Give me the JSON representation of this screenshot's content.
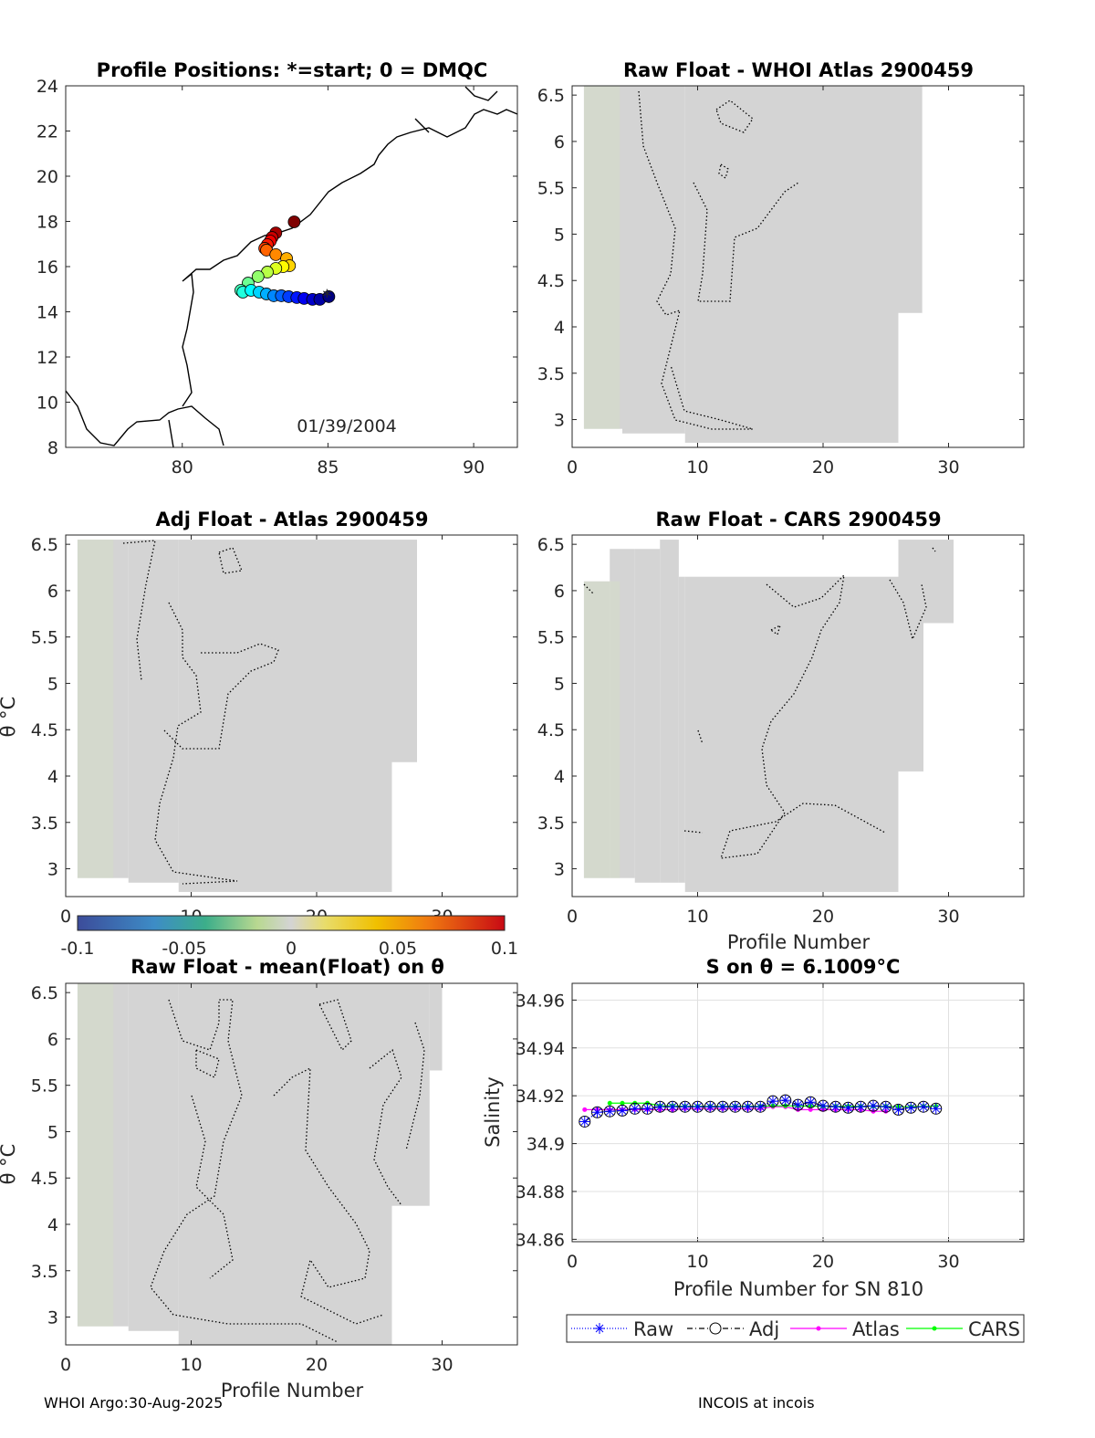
{
  "footer": {
    "left": "WHOI Argo:30-Aug-2025",
    "right": "INCOIS at incois"
  },
  "colors": {
    "gray": "#d4d4d4",
    "greenish": "#d3dcc8",
    "raw": "#0000ff",
    "adj": "#000000",
    "atlas": "#ff00ff",
    "cars": "#00ff00"
  },
  "chart_data": [
    {
      "id": "map",
      "type": "scatter",
      "title": "Profile Positions: *=start; 0 = DMQC",
      "annotation": "01/39/2004",
      "xlim": [
        76,
        91.5
      ],
      "ylim": [
        8,
        24
      ],
      "xticks": [
        80,
        85,
        90
      ],
      "yticks": [
        8,
        10,
        12,
        14,
        16,
        18,
        20,
        22,
        24
      ],
      "lon": [
        85.03,
        84.72,
        84.47,
        84.18,
        83.93,
        83.65,
        83.4,
        83.14,
        82.89,
        82.64,
        82.36,
        82.08,
        82.01,
        82.26,
        82.6,
        82.92,
        83.21,
        83.46,
        83.68,
        83.58,
        83.21,
        82.89,
        82.83,
        82.92,
        83.02,
        83.08,
        83.21,
        83.84
      ],
      "lat": [
        14.67,
        14.55,
        14.55,
        14.59,
        14.63,
        14.67,
        14.71,
        14.71,
        14.79,
        14.87,
        14.95,
        14.87,
        14.95,
        15.27,
        15.56,
        15.76,
        15.92,
        16.0,
        16.04,
        16.36,
        16.53,
        16.73,
        16.81,
        16.97,
        17.13,
        17.29,
        17.49,
        17.98
      ],
      "colorscale": "jet (start blue → end red)"
    },
    {
      "id": "raw-atlas",
      "type": "heatmap",
      "title": "Raw Float - WHOI Atlas  2900459",
      "xlim": [
        0,
        36
      ],
      "ylim": [
        2.7,
        6.6
      ],
      "xticks": [
        0,
        10,
        20,
        30
      ],
      "yticks": [
        3,
        3.5,
        4,
        4.5,
        5,
        5.5,
        6,
        6.5
      ],
      "xlabel": "",
      "ylabel": "",
      "coverage": [
        [
          0.94,
          4,
          2.9,
          6.6
        ],
        [
          4,
          9,
          2.85,
          6.6
        ],
        [
          9,
          26,
          2.75,
          6.6
        ],
        [
          26,
          27.9,
          4.15,
          6.6
        ]
      ]
    },
    {
      "id": "adj-atlas",
      "type": "heatmap",
      "title": "Adj Float - Atlas  2900459",
      "xlim": [
        0,
        36
      ],
      "ylim": [
        2.7,
        6.6
      ],
      "xticks": [
        0,
        10,
        20,
        30
      ],
      "yticks": [
        3,
        3.5,
        4,
        4.5,
        5,
        5.5,
        6,
        6.5
      ],
      "xlabel": "",
      "ylabel": "θ °C",
      "coverage": [
        [
          0.94,
          5,
          2.9,
          6.55
        ],
        [
          5,
          9,
          2.85,
          6.55
        ],
        [
          9,
          26,
          2.75,
          6.55
        ],
        [
          26,
          28,
          4.15,
          6.55
        ]
      ]
    },
    {
      "id": "raw-cars",
      "type": "heatmap",
      "title": "Raw Float - CARS  2900459",
      "xlim": [
        0,
        36
      ],
      "ylim": [
        2.7,
        6.6
      ],
      "xticks": [
        0,
        10,
        20,
        30
      ],
      "yticks": [
        3,
        3.5,
        4,
        4.5,
        5,
        5.5,
        6,
        6.5
      ],
      "xlabel": "Profile Number",
      "ylabel": "",
      "coverage": [
        [
          0.94,
          3,
          2.9,
          6.1
        ],
        [
          3,
          5,
          2.9,
          6.45
        ],
        [
          5,
          7,
          2.85,
          6.45
        ],
        [
          7,
          8.5,
          2.85,
          6.55
        ],
        [
          8.5,
          9,
          2.85,
          6.15
        ],
        [
          9,
          26,
          2.75,
          6.15
        ],
        [
          26,
          28,
          4.05,
          6.55
        ],
        [
          28,
          30.4,
          5.65,
          6.55
        ]
      ]
    },
    {
      "id": "colorbar",
      "type": "heatmap",
      "ticks": [
        "-0.1",
        "-0.05",
        "0",
        "0.05",
        "0.1"
      ],
      "range": [
        -0.1,
        0.1
      ]
    },
    {
      "id": "raw-mean",
      "type": "heatmap",
      "title": "Raw Float - mean(Float) on θ",
      "xlim": [
        0,
        36
      ],
      "ylim": [
        2.7,
        6.6
      ],
      "xticks": [
        0,
        10,
        20,
        30
      ],
      "yticks": [
        3,
        3.5,
        4,
        4.5,
        5,
        5.5,
        6,
        6.5
      ],
      "xlabel": "Profile Number",
      "ylabel": "θ °C",
      "coverage": [
        [
          0.94,
          5,
          2.9,
          6.6
        ],
        [
          5,
          9,
          2.85,
          6.6
        ],
        [
          9,
          26,
          2.7,
          6.6
        ],
        [
          26,
          29,
          4.2,
          6.6
        ],
        [
          29,
          30,
          5.66,
          6.6
        ]
      ]
    },
    {
      "id": "salinity",
      "type": "line",
      "title": "S on θ = 6.1009°C",
      "xlabel": "Profile Number for SN 810",
      "ylabel": "Salinity",
      "xlim": [
        0,
        36
      ],
      "ylim": [
        34.859,
        34.967
      ],
      "xticks": [
        0,
        10,
        20,
        30
      ],
      "yticks": [
        "34.86",
        "34.88",
        "34.9",
        "34.92",
        "34.94",
        "34.96"
      ],
      "grid": true,
      "legend": [
        "Raw",
        "Adj",
        "Atlas",
        "CARS"
      ],
      "legend_position": "below",
      "series": [
        {
          "name": "Raw",
          "x_start": 1,
          "values": [
            34.9092,
            34.9131,
            34.9135,
            34.9138,
            34.9146,
            34.9146,
            34.9154,
            34.9154,
            34.9154,
            34.9154,
            34.9154,
            34.9154,
            34.9154,
            34.9154,
            34.9154,
            34.9177,
            34.9181,
            34.9162,
            34.9173,
            34.9158,
            34.9154,
            34.915,
            34.9154,
            34.9158,
            34.9154,
            34.9142,
            34.915,
            34.9154,
            34.9146
          ]
        },
        {
          "name": "Adj",
          "x_start": 1,
          "values": [
            34.9092,
            34.9131,
            34.9135,
            34.9138,
            34.9146,
            34.9146,
            34.9154,
            34.9154,
            34.9154,
            34.9154,
            34.9154,
            34.9154,
            34.9154,
            34.9154,
            34.9154,
            34.9177,
            34.9181,
            34.9162,
            34.9173,
            34.9158,
            34.9154,
            34.915,
            34.9154,
            34.9158,
            34.9154,
            34.9142,
            34.915,
            34.9154,
            34.9146
          ]
        },
        {
          "name": "Atlas",
          "x_start": 1,
          "values": [
            34.9142,
            34.9142,
            34.9142,
            34.9142,
            34.9142,
            34.9142,
            34.9142,
            34.9142,
            34.9146,
            34.9146,
            34.9146,
            34.9146,
            34.9146,
            34.9146,
            34.9146,
            34.9154,
            34.9154,
            34.9142,
            34.9142,
            34.9142,
            34.9142,
            34.9142,
            34.9142,
            34.9135,
            34.9135
          ]
        },
        {
          "name": "CARS",
          "x_start": 3,
          "values": [
            34.9169,
            34.9169,
            34.9169,
            34.9169,
            34.9158,
            34.9158,
            34.9156,
            34.9156,
            34.9156,
            34.9156,
            34.9156,
            34.9156,
            34.9156,
            34.9158,
            34.9158,
            34.9158,
            34.9156,
            34.9156,
            34.9156,
            34.9156,
            34.9156,
            34.9156,
            34.9156,
            34.9154,
            34.9154,
            34.9156,
            34.9156
          ]
        }
      ]
    }
  ]
}
